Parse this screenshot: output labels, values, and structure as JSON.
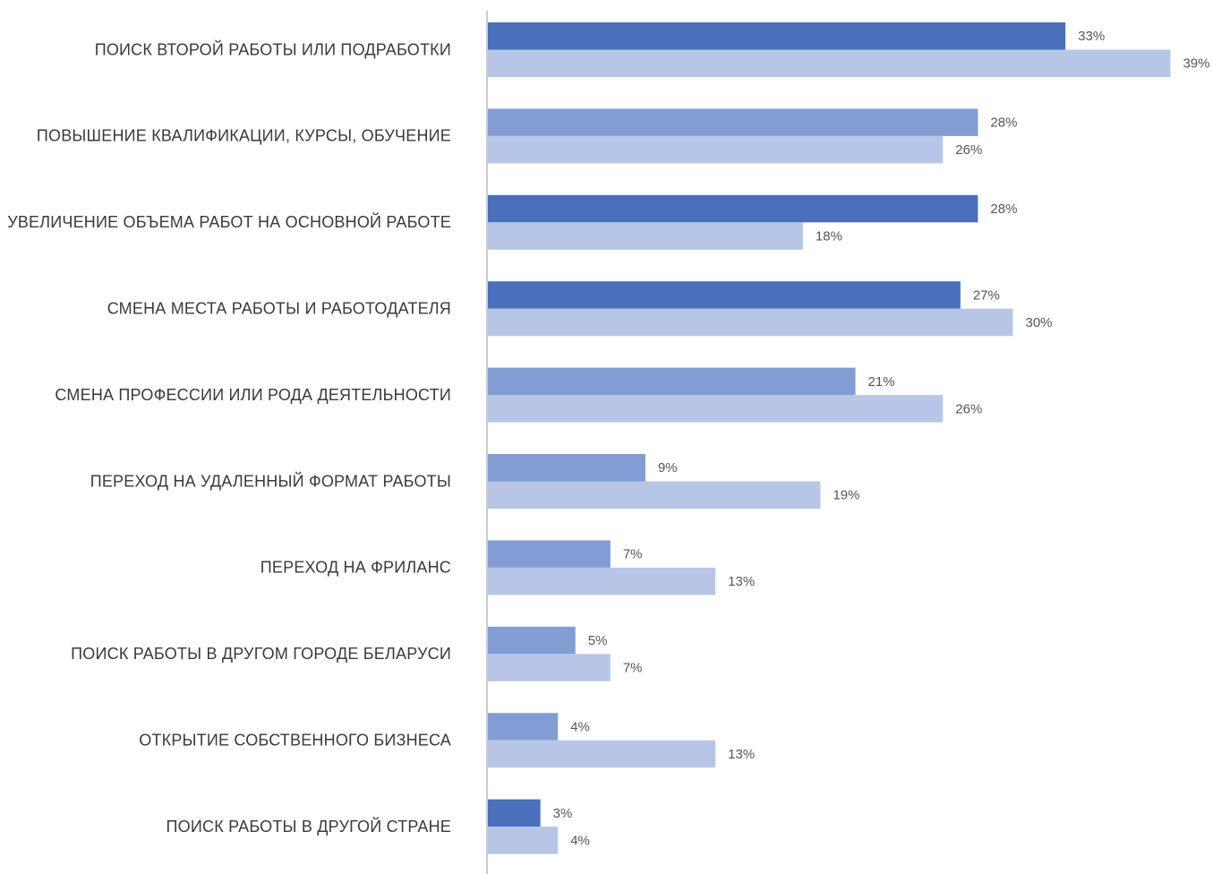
{
  "chart_data": {
    "type": "bar",
    "orientation": "horizontal",
    "categories": [
      "ПОИСК ВТОРОЙ РАБОТЫ ИЛИ ПОДРАБОТКИ",
      "ПОВЫШЕНИЕ КВАЛИФИКАЦИИ, КУРСЫ, ОБУЧЕНИЕ",
      "УВЕЛИЧЕНИЕ ОБЪЕМА РАБОТ НА ОСНОВНОЙ РАБОТЕ",
      "СМЕНА МЕСТА РАБОТЫ И РАБОТОДАТЕЛЯ",
      "СМЕНА ПРОФЕССИИ ИЛИ РОДА ДЕЯТЕЛЬНОСТИ",
      "ПЕРЕХОД НА УДАЛЕННЫЙ ФОРМАТ РАБОТЫ",
      "ПЕРЕХОД НА ФРИЛАНС",
      "ПОИСК РАБОТЫ В ДРУГОМ ГОРОДЕ БЕЛАРУСИ",
      "ОТКРЫТИЕ СОБСТВЕННОГО БИЗНЕСА",
      "ПОИСК РАБОТЫ В ДРУГОЙ СТРАНЕ"
    ],
    "series": [
      {
        "values": [
          33,
          28,
          28,
          27,
          21,
          9,
          7,
          5,
          4,
          3
        ],
        "labels": [
          "33%",
          "28%",
          "28%",
          "27%",
          "21%",
          "9%",
          "7%",
          "5%",
          "4%",
          "3%"
        ],
        "colors": [
          "#4a70bc",
          "#829dd4",
          "#4a70bc",
          "#4a70bc",
          "#829dd4",
          "#829dd4",
          "#829dd4",
          "#829dd4",
          "#829dd4",
          "#4a70bc"
        ]
      },
      {
        "values": [
          39,
          26,
          18,
          30,
          26,
          19,
          13,
          7,
          13,
          4
        ],
        "labels": [
          "39%",
          "26%",
          "18%",
          "30%",
          "26%",
          "19%",
          "13%",
          "7%",
          "13%",
          "4%"
        ],
        "color": "#b7c6e6"
      }
    ],
    "xlim": [
      0,
      40
    ],
    "grid": false,
    "legend": "none",
    "axis_color": "#cccccc"
  }
}
